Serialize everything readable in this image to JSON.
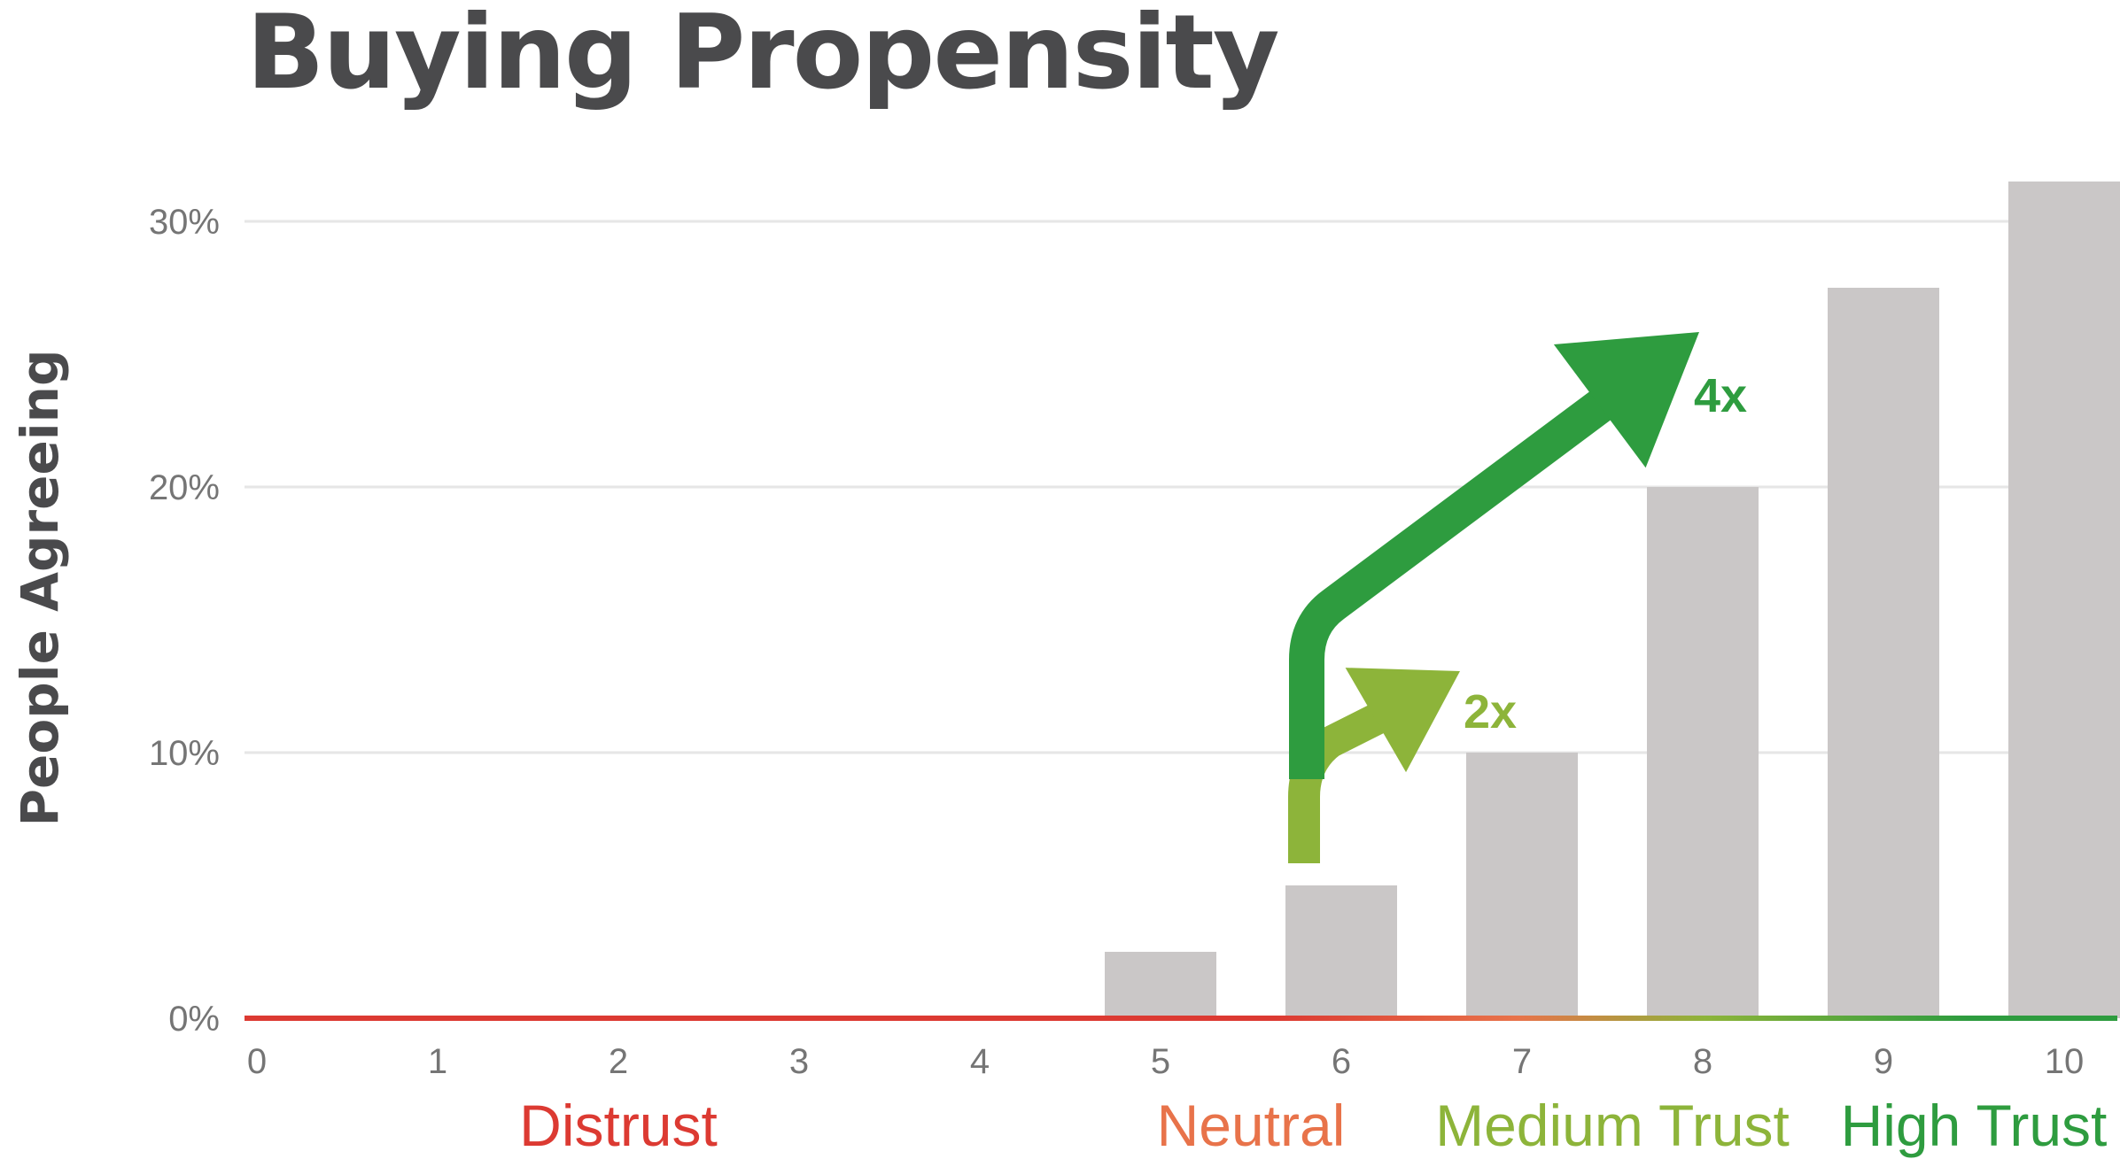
{
  "colors": {
    "bar": "#cac7c7",
    "grid": "#e6e6e6",
    "tick_text": "#757575",
    "distrust": "#dc3a32",
    "neutral": "#e8734a",
    "medium_trust": "#8db43a",
    "high_trust": "#2e9c3f"
  },
  "chart_data": {
    "type": "bar",
    "title": "Buying Propensity",
    "xlabel": "",
    "ylabel": "People Agreeing",
    "categories": [
      "0",
      "1",
      "2",
      "3",
      "4",
      "5",
      "6",
      "7",
      "8",
      "9",
      "10"
    ],
    "values": [
      0,
      0,
      0,
      0,
      0,
      2.5,
      5,
      10,
      20,
      27.5,
      31.5
    ],
    "ylim": [
      0,
      32
    ],
    "yticks": [
      {
        "value": 0,
        "label": "0%"
      },
      {
        "value": 10,
        "label": "10%"
      },
      {
        "value": 20,
        "label": "20%"
      },
      {
        "value": 30,
        "label": "30%"
      }
    ],
    "grid": true,
    "zones": [
      {
        "label": "Distrust",
        "from": 0,
        "to": 4,
        "color": "#dc3a32"
      },
      {
        "label": "Neutral",
        "from": 5,
        "to": 6,
        "color": "#e8734a"
      },
      {
        "label": "Medium Trust",
        "from": 7,
        "to": 8,
        "color": "#8db43a"
      },
      {
        "label": "High Trust",
        "from": 9,
        "to": 10,
        "color": "#2e9c3f"
      }
    ],
    "annotations": [
      {
        "label": "2x",
        "from_category": "6",
        "to_category": "7",
        "color": "#8db43a"
      },
      {
        "label": "4x",
        "from_category": "6",
        "to_category": "8",
        "color": "#2e9c3f"
      }
    ]
  }
}
